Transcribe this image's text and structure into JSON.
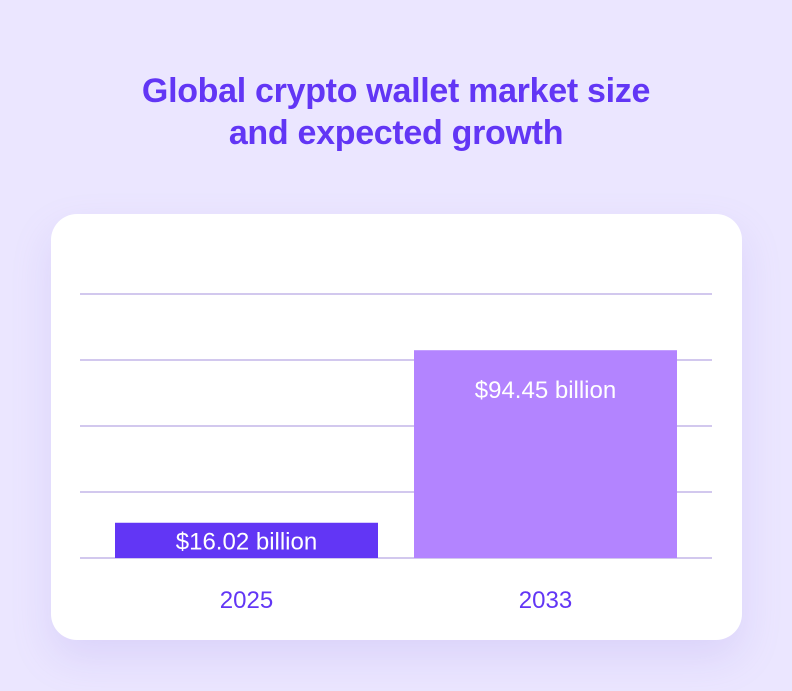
{
  "title_lines": [
    "Global crypto wallet market size",
    "and expected growth"
  ],
  "chart_data": {
    "type": "bar",
    "title": "Global crypto wallet market size and expected growth",
    "categories": [
      "2025",
      "2033"
    ],
    "values": [
      16.02,
      94.45
    ],
    "value_labels": [
      "$16.02 billion",
      "$94.45 billion"
    ],
    "unit": "billion USD",
    "ylim": [
      0,
      120
    ],
    "yticks": [
      0,
      30,
      60,
      90,
      120
    ],
    "grid": true,
    "colors": {
      "bars": [
        "#6236f5",
        "#b384ff"
      ],
      "gridlines": "#b7a8e3",
      "value_text": "#ffffff",
      "category_text": "#6236f5"
    }
  }
}
